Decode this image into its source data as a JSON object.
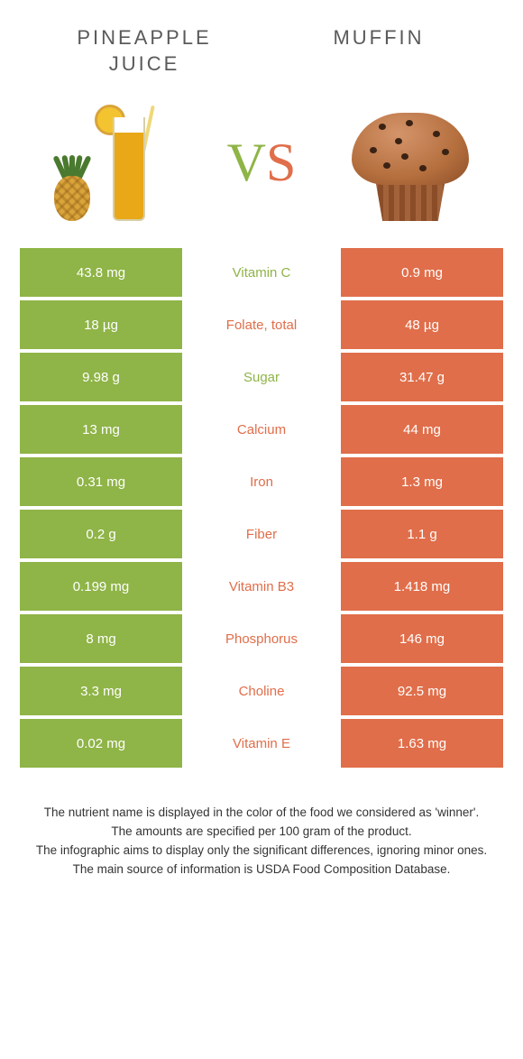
{
  "colors": {
    "left": "#8fb447",
    "right": "#e06e4a",
    "text_dark": "#333333",
    "title_color": "#5a5a5a"
  },
  "left_food": {
    "title": "Pineapple Juice"
  },
  "right_food": {
    "title": "Muffin"
  },
  "vs": {
    "v": "V",
    "s": "S"
  },
  "rows": [
    {
      "label": "Vitamin C",
      "left": "43.8 mg",
      "right": "0.9 mg",
      "winner": "left"
    },
    {
      "label": "Folate, total",
      "left": "18 µg",
      "right": "48 µg",
      "winner": "right"
    },
    {
      "label": "Sugar",
      "left": "9.98 g",
      "right": "31.47 g",
      "winner": "left"
    },
    {
      "label": "Calcium",
      "left": "13 mg",
      "right": "44 mg",
      "winner": "right"
    },
    {
      "label": "Iron",
      "left": "0.31 mg",
      "right": "1.3 mg",
      "winner": "right"
    },
    {
      "label": "Fiber",
      "left": "0.2 g",
      "right": "1.1 g",
      "winner": "right"
    },
    {
      "label": "Vitamin B3",
      "left": "0.199 mg",
      "right": "1.418 mg",
      "winner": "right"
    },
    {
      "label": "Phosphorus",
      "left": "8 mg",
      "right": "146 mg",
      "winner": "right"
    },
    {
      "label": "Choline",
      "left": "3.3 mg",
      "right": "92.5 mg",
      "winner": "right"
    },
    {
      "label": "Vitamin E",
      "left": "0.02 mg",
      "right": "1.63 mg",
      "winner": "right"
    }
  ],
  "footer": {
    "line1": "The nutrient name is displayed in the color of the food we considered as 'winner'.",
    "line2": "The amounts are specified per 100 gram of the product.",
    "line3": "The infographic aims to display only the significant differences, ignoring minor ones.",
    "line4": "The main source of information is USDA Food Composition Database."
  }
}
